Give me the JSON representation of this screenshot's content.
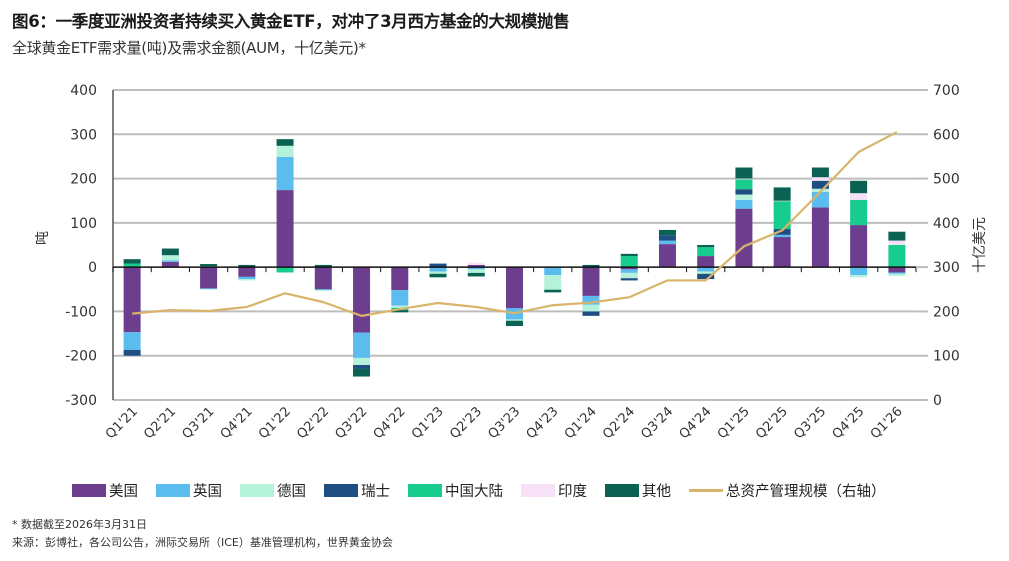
{
  "title": "图6：一季度亚洲投资者持续买入黄金ETF，对冲了3月西方基金的大规模抛售",
  "subtitle": "全球黄金ETF需求量(吨)及需求金额(AUM，十亿美元)*",
  "footnote": "* 数据截至2026年3月31日",
  "source": "来源：彭博社，各公司公告，洲际交易所（ICE）基准管理机构，世界黄金协会",
  "chart_data": {
    "type": "bar",
    "stacked": true,
    "title": "全球黄金ETF需求量(吨)及需求金额(AUM，十亿美元)",
    "xlabel": "",
    "ylabel": "吨",
    "y2label": "十亿美元",
    "ylim": [
      -300,
      400
    ],
    "y2lim": [
      0,
      700
    ],
    "yticks": [
      "400",
      "300",
      "200",
      "100",
      "0",
      "-100",
      "-200",
      "-300"
    ],
    "y2ticks": [
      "700",
      "600",
      "500",
      "400",
      "300",
      "200",
      "100",
      "0"
    ],
    "grid": true,
    "legend_position": "bottom",
    "categories": [
      "Q1'21",
      "Q2'21",
      "Q3'21",
      "Q4'21",
      "Q1'22",
      "Q2'22",
      "Q3'22",
      "Q4'22",
      "Q1'23",
      "Q2'23",
      "Q3'23",
      "Q4'23",
      "Q1'24",
      "Q2'24",
      "Q3'24",
      "Q4'24",
      "Q1'25",
      "Q2'25",
      "Q3'25",
      "Q4'25",
      "Q1'26"
    ],
    "series": [
      {
        "name": "美国",
        "color": "#6e3e8e",
        "values": [
          -147,
          12,
          -48,
          -22,
          174,
          -50,
          -148,
          -52,
          0,
          5,
          -93,
          0,
          -65,
          -5,
          52,
          25,
          132,
          68,
          135,
          95,
          -12
        ]
      },
      {
        "name": "英国",
        "color": "#5bbcf0",
        "values": [
          -40,
          3,
          -2,
          -5,
          75,
          -2,
          -57,
          -35,
          -10,
          -5,
          -25,
          -18,
          -20,
          -8,
          8,
          -10,
          20,
          5,
          35,
          -18,
          -3
        ]
      },
      {
        "name": "德国",
        "color": "#b4f2da",
        "values": [
          0,
          12,
          2,
          -3,
          25,
          -2,
          -16,
          -5,
          -5,
          -8,
          -3,
          -33,
          -15,
          -12,
          0,
          -5,
          12,
          0,
          7,
          -5,
          -5
        ]
      },
      {
        "name": "瑞士",
        "color": "#1f4e82",
        "values": [
          -13,
          0,
          0,
          0,
          0,
          0,
          -8,
          0,
          8,
          0,
          0,
          0,
          -10,
          -5,
          12,
          -12,
          12,
          13,
          18,
          0,
          0
        ]
      },
      {
        "name": "中国大陆",
        "color": "#17cc8c",
        "values": [
          8,
          0,
          0,
          0,
          -12,
          0,
          0,
          -5,
          0,
          0,
          0,
          0,
          0,
          25,
          0,
          20,
          22,
          63,
          0,
          57,
          50
        ]
      },
      {
        "name": "印度",
        "color": "#f6e1f6",
        "values": [
          0,
          0,
          0,
          0,
          0,
          0,
          0,
          0,
          0,
          5,
          0,
          0,
          0,
          0,
          0,
          0,
          2,
          1,
          8,
          15,
          10
        ]
      },
      {
        "name": "其他",
        "color": "#0b6152",
        "values": [
          10,
          15,
          5,
          5,
          15,
          5,
          -18,
          -5,
          -8,
          -8,
          -12,
          -6,
          5,
          5,
          12,
          5,
          25,
          30,
          22,
          28,
          20
        ]
      }
    ],
    "line_series": {
      "name": "总资产管理规模（右轴）",
      "color": "#d9b46a",
      "axis": "right",
      "values": [
        195,
        203,
        201,
        210,
        241,
        221,
        190,
        205,
        219,
        210,
        196,
        214,
        220,
        232,
        270,
        270,
        347,
        383,
        470,
        560,
        605
      ]
    }
  }
}
